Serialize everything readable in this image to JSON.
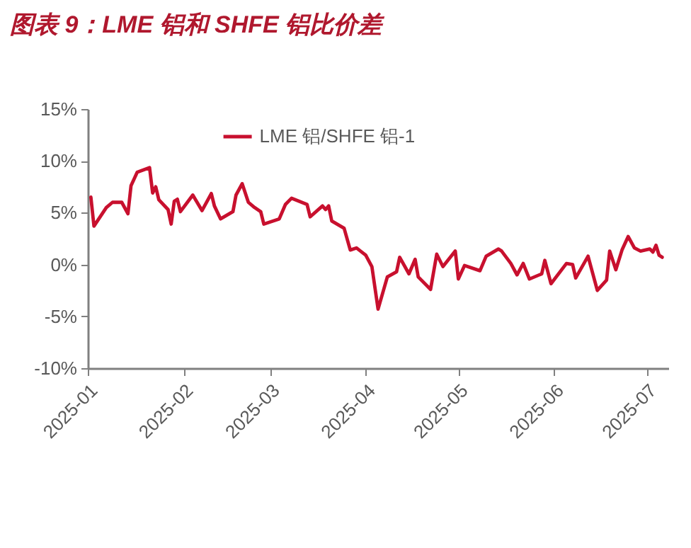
{
  "chart_data": {
    "type": "line",
    "title": "图表 9：LME 铝和 SHFE 铝比价差",
    "x": [
      "2025-01-02",
      "2025-01-03",
      "2025-01-07",
      "2025-01-09",
      "2025-01-12",
      "2025-01-14",
      "2025-01-15",
      "2025-01-17",
      "2025-01-21",
      "2025-01-22",
      "2025-01-23",
      "2025-01-24",
      "2025-01-27",
      "2025-01-28",
      "2025-01-29",
      "2025-01-30",
      "2025-01-31",
      "2025-02-04",
      "2025-02-07",
      "2025-02-10",
      "2025-02-11",
      "2025-02-13",
      "2025-02-17",
      "2025-02-18",
      "2025-02-20",
      "2025-02-22",
      "2025-02-24",
      "2025-02-26",
      "2025-02-27",
      "2025-03-04",
      "2025-03-06",
      "2025-03-08",
      "2025-03-13",
      "2025-03-14",
      "2025-03-18",
      "2025-03-19",
      "2025-03-20",
      "2025-03-21",
      "2025-03-25",
      "2025-03-27",
      "2025-03-29",
      "2025-04-01",
      "2025-04-03",
      "2025-04-05",
      "2025-04-08",
      "2025-04-11",
      "2025-04-12",
      "2025-04-15",
      "2025-04-17",
      "2025-04-18",
      "2025-04-22",
      "2025-04-24",
      "2025-04-26",
      "2025-04-30",
      "2025-05-01",
      "2025-05-03",
      "2025-05-08",
      "2025-05-10",
      "2025-05-14",
      "2025-05-15",
      "2025-05-18",
      "2025-05-20",
      "2025-05-22",
      "2025-05-24",
      "2025-05-28",
      "2025-05-29",
      "2025-05-31",
      "2025-06-05",
      "2025-06-07",
      "2025-06-08",
      "2025-06-12",
      "2025-06-15",
      "2025-06-18",
      "2025-06-19",
      "2025-06-21",
      "2025-06-23",
      "2025-06-25",
      "2025-06-27",
      "2025-06-29",
      "2025-07-02",
      "2025-07-03",
      "2025-07-04",
      "2025-07-05",
      "2025-07-06"
    ],
    "series": [
      {
        "name": "LME 铝/SHFE 铝-1",
        "color": "#c8102e",
        "values": [
          6.5,
          3.7,
          5.5,
          6.0,
          6.0,
          4.9,
          7.6,
          8.9,
          9.35,
          6.9,
          7.5,
          6.25,
          5.3,
          3.9,
          6.1,
          6.3,
          5.1,
          6.7,
          5.2,
          6.85,
          5.65,
          4.4,
          5.1,
          6.7,
          7.8,
          6.0,
          5.5,
          5.1,
          3.9,
          4.4,
          5.8,
          6.4,
          5.8,
          4.6,
          5.65,
          5.3,
          5.65,
          4.2,
          3.5,
          1.4,
          1.6,
          0.9,
          -0.2,
          -4.3,
          -1.2,
          -0.7,
          0.7,
          -0.9,
          0.5,
          -1.2,
          -2.4,
          1.0,
          -0.2,
          1.3,
          -1.4,
          -0.1,
          -0.6,
          0.8,
          1.5,
          1.3,
          0.1,
          -1.0,
          0.1,
          -1.4,
          -0.9,
          0.4,
          -1.85,
          0.1,
          0.0,
          -1.3,
          0.8,
          -2.5,
          -1.5,
          1.3,
          -0.5,
          1.4,
          2.7,
          1.6,
          1.3,
          1.5,
          1.2,
          1.85,
          0.9,
          0.7
        ]
      }
    ],
    "xlim": [
      "2025-01-01",
      "2025-07-08"
    ],
    "xticks": [
      "2025-01",
      "2025-02",
      "2025-03",
      "2025-04",
      "2025-05",
      "2025-06",
      "2025-07"
    ],
    "ylim": [
      -10,
      15
    ],
    "yticks": [
      {
        "value": -10,
        "label": "-10%"
      },
      {
        "value": -5,
        "label": "-5%"
      },
      {
        "value": 0,
        "label": "0%"
      },
      {
        "value": 5,
        "label": "5%"
      },
      {
        "value": 10,
        "label": "10%"
      },
      {
        "value": 15,
        "label": "15%"
      }
    ],
    "legend": "top",
    "grid": false
  }
}
